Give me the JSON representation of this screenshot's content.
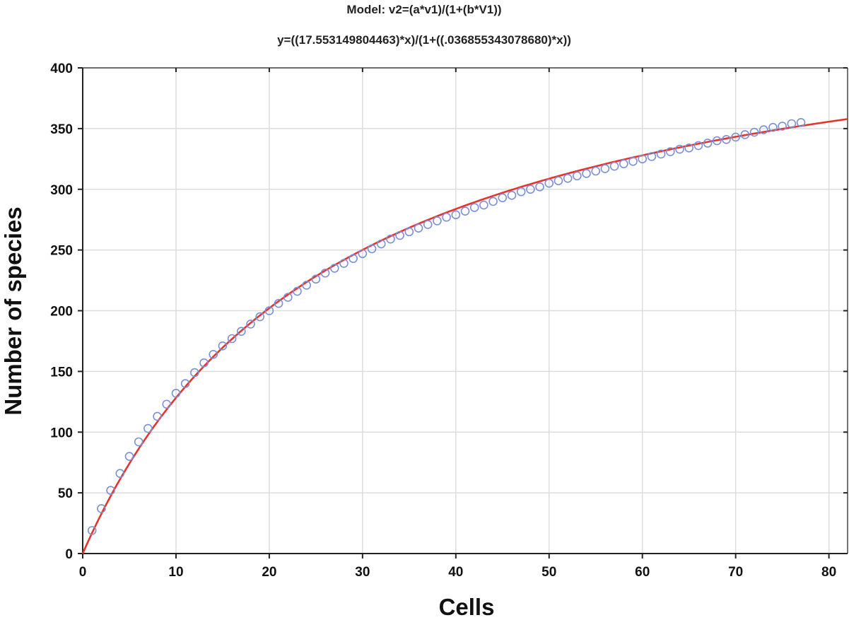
{
  "chart_data": {
    "type": "scatter",
    "title": "Model: v2=(a*v1)/(1+(b*V1))",
    "subtitle": "y=((17.553149804463)*x)/(1+((.036855343078680)*x))",
    "xlabel": "Cells",
    "ylabel": "Number of species",
    "xlim": [
      0,
      82
    ],
    "ylim": [
      0,
      400
    ],
    "xticks": [
      0,
      10,
      20,
      30,
      40,
      50,
      60,
      70,
      80
    ],
    "yticks": [
      0,
      50,
      100,
      150,
      200,
      250,
      300,
      350,
      400
    ],
    "grid": true,
    "colors": {
      "observed": "#7b8fd9",
      "fit": "#e8332a"
    },
    "series": [
      {
        "type": "scatter",
        "marker": "open-circle",
        "x": [
          1,
          2,
          3,
          4,
          5,
          6,
          7,
          8,
          9,
          10,
          11,
          12,
          13,
          14,
          15,
          16,
          17,
          18,
          19,
          20,
          21,
          22,
          23,
          24,
          25,
          26,
          27,
          28,
          29,
          30,
          31,
          32,
          33,
          34,
          35,
          36,
          37,
          38,
          39,
          40,
          41,
          42,
          43,
          44,
          45,
          46,
          47,
          48,
          49,
          50,
          51,
          52,
          53,
          54,
          55,
          56,
          57,
          58,
          59,
          60,
          61,
          62,
          63,
          64,
          65,
          66,
          67,
          68,
          69,
          70,
          71,
          72,
          73,
          74,
          75,
          76,
          77
        ],
        "y": [
          19,
          37,
          52,
          66,
          80,
          92,
          103,
          113,
          123,
          132,
          140,
          149,
          157,
          164,
          171,
          177,
          183,
          189,
          195,
          200,
          206,
          211,
          216,
          221,
          226,
          231,
          235,
          239,
          243,
          247,
          251,
          255,
          259,
          262,
          265,
          268,
          271,
          274,
          277,
          279,
          282,
          285,
          287,
          290,
          293,
          295,
          298,
          300,
          302,
          305,
          307,
          309,
          311,
          313,
          315,
          317,
          319,
          321,
          323,
          325,
          327,
          329,
          331,
          333,
          334,
          336,
          338,
          340,
          341,
          343,
          345,
          347,
          349,
          351,
          352,
          354,
          355
        ]
      },
      {
        "type": "line",
        "model": "michaelis-menten",
        "params": {
          "a": 17.553149804463,
          "b": 0.03685534307868
        },
        "x_range": [
          0,
          82
        ]
      }
    ]
  }
}
